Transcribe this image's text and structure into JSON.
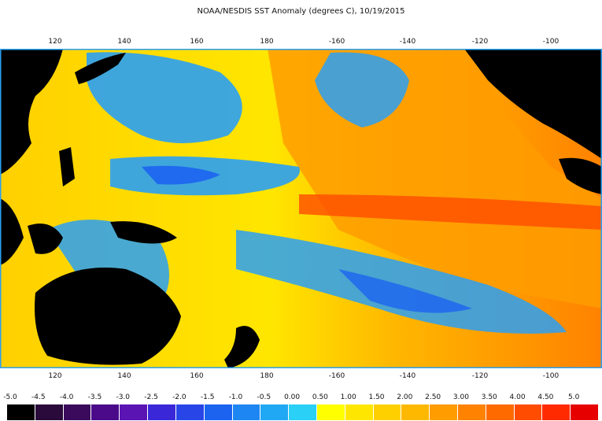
{
  "title": "NOAA/NESDIS SST Anomaly (degrees C), 10/19/2015",
  "top_axis": [
    "120",
    "140",
    "160",
    "180",
    "-160",
    "-140",
    "-120",
    "-100"
  ],
  "bottom_axis": [
    "120",
    "140",
    "160",
    "180",
    "-160",
    "-140",
    "-120",
    "-100"
  ],
  "scale": {
    "labels": [
      "-5.0",
      "-4.5",
      "-4.0",
      "-3.5",
      "-3.0",
      "-2.5",
      "-2.0",
      "-1.5",
      "-1.0",
      "-0.5",
      "0.00",
      "0.50",
      "1.00",
      "1.50",
      "2.00",
      "2.50",
      "3.00",
      "3.50",
      "4.00",
      "4.50",
      "5.0"
    ],
    "colors": [
      "#000000",
      "#2a0a3a",
      "#3b0a5c",
      "#4a0a8a",
      "#5a14b4",
      "#3a28d8",
      "#2846e8",
      "#1c64f0",
      "#1e86f2",
      "#20a8f4",
      "#2ad0f6",
      "#ffff00",
      "#ffe600",
      "#ffd000",
      "#ffb800",
      "#ff9c00",
      "#ff8200",
      "#ff6a00",
      "#ff4c00",
      "#ff2a00",
      "#e60000"
    ]
  },
  "colors": {
    "land": "#000000",
    "ocean_warm": "#ff9c00",
    "ocean_hot": "#ff4c00",
    "ocean_neutral": "#ffe600",
    "ocean_cool": "#2aa0f4",
    "ocean_cold": "#1c64f0",
    "frame": "#2aa0f4"
  }
}
